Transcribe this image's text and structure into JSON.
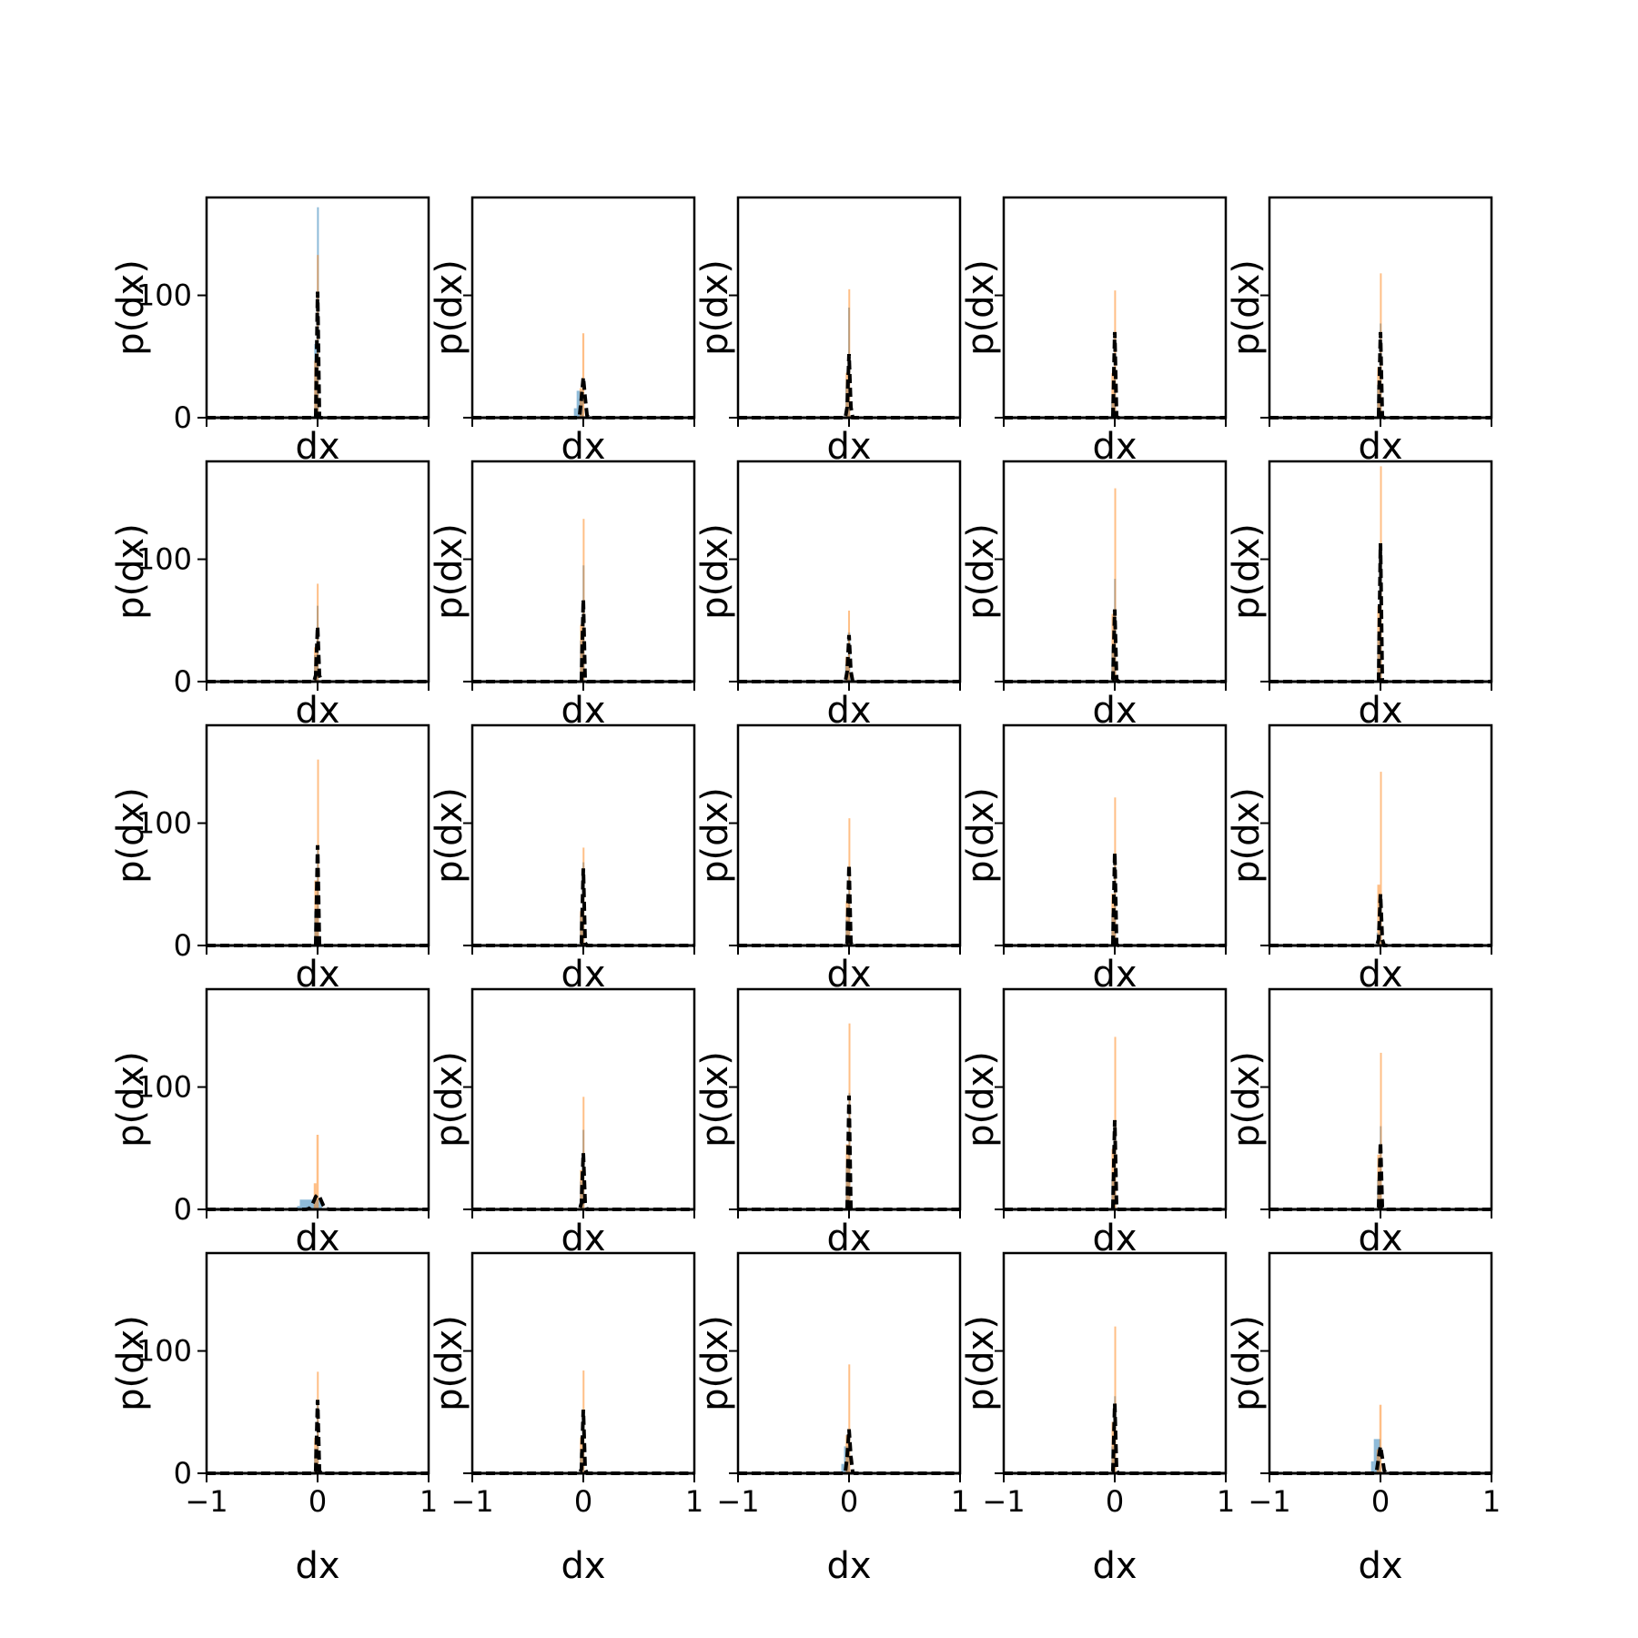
{
  "figure": {
    "rows": 5,
    "cols": 5,
    "xlabel": "dx",
    "ylabel": "p(dx)",
    "xlim": [
      -1,
      1
    ],
    "ylim": [
      0,
      180
    ],
    "xticks": [
      -1,
      0,
      1
    ],
    "xtick_labels": [
      "−1",
      "0",
      "1"
    ],
    "yticks": [
      0,
      100
    ],
    "ytick_labels": [
      "0",
      "100"
    ],
    "colors": {
      "blue": "#1f77b4",
      "orange": "#ff7f0e",
      "fit": "#000000"
    }
  },
  "chart_data": [
    {
      "type": "bar",
      "row": 0,
      "col": 0,
      "series": [
        {
          "color": "blue",
          "peak": 172,
          "width": 0.01
        },
        {
          "color": "orange",
          "peak": 133,
          "width": 0.012
        },
        {
          "color": "fit",
          "peak": 103,
          "width": 0.012
        }
      ]
    },
    {
      "type": "bar",
      "row": 0,
      "col": 1,
      "series": [
        {
          "color": "blue",
          "peak": 22,
          "width": 0.06,
          "offset": -0.03
        },
        {
          "color": "orange",
          "peak": 69,
          "width": 0.018
        },
        {
          "color": "fit",
          "peak": 33,
          "width": 0.035
        }
      ]
    },
    {
      "type": "bar",
      "row": 0,
      "col": 2,
      "series": [
        {
          "color": "blue",
          "peak": 90,
          "width": 0.016
        },
        {
          "color": "orange",
          "peak": 105,
          "width": 0.012
        },
        {
          "color": "fit",
          "peak": 52,
          "width": 0.022
        }
      ]
    },
    {
      "type": "bar",
      "row": 0,
      "col": 3,
      "series": [
        {
          "color": "blue",
          "peak": 35,
          "width": 0.018
        },
        {
          "color": "orange",
          "peak": 104,
          "width": 0.01
        },
        {
          "color": "fit",
          "peak": 70,
          "width": 0.014
        }
      ]
    },
    {
      "type": "bar",
      "row": 0,
      "col": 4,
      "series": [
        {
          "color": "blue",
          "peak": 77,
          "width": 0.014
        },
        {
          "color": "orange",
          "peak": 118,
          "width": 0.01
        },
        {
          "color": "fit",
          "peak": 70,
          "width": 0.014
        }
      ]
    },
    {
      "type": "bar",
      "row": 1,
      "col": 0,
      "series": [
        {
          "color": "blue",
          "peak": 62,
          "width": 0.016
        },
        {
          "color": "orange",
          "peak": 80,
          "width": 0.014
        },
        {
          "color": "fit",
          "peak": 45,
          "width": 0.02
        }
      ]
    },
    {
      "type": "bar",
      "row": 1,
      "col": 1,
      "series": [
        {
          "color": "blue",
          "peak": 95,
          "width": 0.012
        },
        {
          "color": "orange",
          "peak": 133,
          "width": 0.01
        },
        {
          "color": "fit",
          "peak": 67,
          "width": 0.014
        }
      ]
    },
    {
      "type": "bar",
      "row": 1,
      "col": 2,
      "series": [
        {
          "color": "blue",
          "peak": 40,
          "width": 0.022
        },
        {
          "color": "orange",
          "peak": 58,
          "width": 0.016
        },
        {
          "color": "fit",
          "peak": 38,
          "width": 0.024
        }
      ]
    },
    {
      "type": "bar",
      "row": 1,
      "col": 3,
      "series": [
        {
          "color": "blue",
          "peak": 84,
          "width": 0.012
        },
        {
          "color": "orange",
          "peak": 158,
          "width": 0.008
        },
        {
          "color": "fit",
          "peak": 59,
          "width": 0.016
        }
      ]
    },
    {
      "type": "bar",
      "row": 1,
      "col": 4,
      "series": [
        {
          "color": "blue",
          "peak": 110,
          "width": 0.01
        },
        {
          "color": "orange",
          "peak": 176,
          "width": 0.008
        },
        {
          "color": "fit",
          "peak": 113,
          "width": 0.01
        }
      ]
    },
    {
      "type": "bar",
      "row": 2,
      "col": 0,
      "series": [
        {
          "color": "blue",
          "peak": 80,
          "width": 0.012
        },
        {
          "color": "orange",
          "peak": 152,
          "width": 0.008
        },
        {
          "color": "fit",
          "peak": 82,
          "width": 0.012
        }
      ]
    },
    {
      "type": "bar",
      "row": 2,
      "col": 1,
      "series": [
        {
          "color": "blue",
          "peak": 68,
          "width": 0.014
        },
        {
          "color": "orange",
          "peak": 80,
          "width": 0.012
        },
        {
          "color": "fit",
          "peak": 63,
          "width": 0.016
        }
      ]
    },
    {
      "type": "bar",
      "row": 2,
      "col": 2,
      "series": [
        {
          "color": "blue",
          "peak": 60,
          "width": 0.014
        },
        {
          "color": "orange",
          "peak": 104,
          "width": 0.01
        },
        {
          "color": "fit",
          "peak": 66,
          "width": 0.016
        }
      ]
    },
    {
      "type": "bar",
      "row": 2,
      "col": 3,
      "series": [
        {
          "color": "blue",
          "peak": 75,
          "width": 0.012
        },
        {
          "color": "orange",
          "peak": 121,
          "width": 0.01
        },
        {
          "color": "fit",
          "peak": 76,
          "width": 0.014
        }
      ]
    },
    {
      "type": "bar",
      "row": 2,
      "col": 4,
      "series": [
        {
          "color": "blue",
          "peak": 30,
          "width": 0.02
        },
        {
          "color": "orange",
          "peak": 142,
          "width": 0.008
        },
        {
          "color": "fit",
          "peak": 42,
          "width": 0.02
        }
      ]
    },
    {
      "type": "bar",
      "row": 3,
      "col": 0,
      "series": [
        {
          "color": "blue",
          "peak": 8,
          "width": 0.2,
          "offset": -0.06
        },
        {
          "color": "orange",
          "peak": 61,
          "width": 0.02
        },
        {
          "color": "fit",
          "peak": 12,
          "width": 0.08
        }
      ]
    },
    {
      "type": "bar",
      "row": 3,
      "col": 1,
      "series": [
        {
          "color": "blue",
          "peak": 65,
          "width": 0.014
        },
        {
          "color": "orange",
          "peak": 92,
          "width": 0.012
        },
        {
          "color": "fit",
          "peak": 46,
          "width": 0.02
        }
      ]
    },
    {
      "type": "bar",
      "row": 3,
      "col": 2,
      "series": [
        {
          "color": "blue",
          "peak": 95,
          "width": 0.01
        },
        {
          "color": "orange",
          "peak": 152,
          "width": 0.008
        },
        {
          "color": "fit",
          "peak": 93,
          "width": 0.012
        }
      ]
    },
    {
      "type": "bar",
      "row": 3,
      "col": 3,
      "series": [
        {
          "color": "blue",
          "peak": 70,
          "width": 0.012
        },
        {
          "color": "orange",
          "peak": 141,
          "width": 0.008
        },
        {
          "color": "fit",
          "peak": 73,
          "width": 0.014
        }
      ]
    },
    {
      "type": "bar",
      "row": 3,
      "col": 4,
      "series": [
        {
          "color": "blue",
          "peak": 68,
          "width": 0.012
        },
        {
          "color": "orange",
          "peak": 128,
          "width": 0.008
        },
        {
          "color": "fit",
          "peak": 55,
          "width": 0.016
        }
      ]
    },
    {
      "type": "bar",
      "row": 4,
      "col": 0,
      "series": [
        {
          "color": "blue",
          "peak": 58,
          "width": 0.014
        },
        {
          "color": "orange",
          "peak": 83,
          "width": 0.012
        },
        {
          "color": "fit",
          "peak": 60,
          "width": 0.016
        }
      ]
    },
    {
      "type": "bar",
      "row": 4,
      "col": 1,
      "series": [
        {
          "color": "blue",
          "peak": 48,
          "width": 0.016
        },
        {
          "color": "orange",
          "peak": 84,
          "width": 0.012
        },
        {
          "color": "fit",
          "peak": 52,
          "width": 0.018
        }
      ]
    },
    {
      "type": "bar",
      "row": 4,
      "col": 2,
      "series": [
        {
          "color": "blue",
          "peak": 22,
          "width": 0.05,
          "offset": -0.02
        },
        {
          "color": "orange",
          "peak": 89,
          "width": 0.012
        },
        {
          "color": "fit",
          "peak": 36,
          "width": 0.03
        }
      ]
    },
    {
      "type": "bar",
      "row": 4,
      "col": 3,
      "series": [
        {
          "color": "blue",
          "peak": 63,
          "width": 0.012
        },
        {
          "color": "orange",
          "peak": 120,
          "width": 0.008
        },
        {
          "color": "fit",
          "peak": 57,
          "width": 0.016
        }
      ]
    },
    {
      "type": "bar",
      "row": 4,
      "col": 4,
      "series": [
        {
          "color": "blue",
          "peak": 28,
          "width": 0.06,
          "offset": -0.03
        },
        {
          "color": "orange",
          "peak": 56,
          "width": 0.02
        },
        {
          "color": "fit",
          "peak": 22,
          "width": 0.04
        }
      ]
    }
  ]
}
